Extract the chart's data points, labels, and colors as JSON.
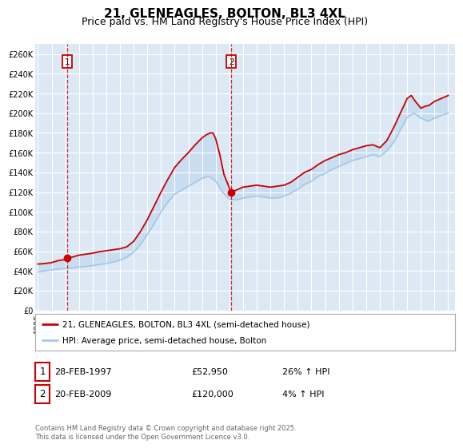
{
  "title": "21, GLENEAGLES, BOLTON, BL3 4XL",
  "subtitle": "Price paid vs. HM Land Registry's House Price Index (HPI)",
  "ylabel_ticks": [
    "£0",
    "£20K",
    "£40K",
    "£60K",
    "£80K",
    "£100K",
    "£120K",
    "£140K",
    "£160K",
    "£180K",
    "£200K",
    "£220K",
    "£240K",
    "£260K"
  ],
  "ytick_values": [
    0,
    20000,
    40000,
    60000,
    80000,
    100000,
    120000,
    140000,
    160000,
    180000,
    200000,
    220000,
    240000,
    260000
  ],
  "ylim": [
    0,
    270000
  ],
  "xlim_start": 1994.8,
  "xlim_end": 2025.5,
  "xticks": [
    1995,
    1996,
    1997,
    1998,
    1999,
    2000,
    2001,
    2002,
    2003,
    2004,
    2005,
    2006,
    2007,
    2008,
    2009,
    2010,
    2011,
    2012,
    2013,
    2014,
    2015,
    2016,
    2017,
    2018,
    2019,
    2020,
    2021,
    2022,
    2023,
    2024,
    2025
  ],
  "plot_bg_color": "#dce9f5",
  "grid_color": "#ffffff",
  "red_line_color": "#cc0000",
  "blue_line_color": "#a8c8e8",
  "marker1_date": 1997.16,
  "marker1_price": 52950,
  "marker2_date": 2009.13,
  "marker2_price": 120000,
  "annotation1_label": "1",
  "annotation2_label": "2",
  "legend_label_red": "21, GLENEAGLES, BOLTON, BL3 4XL (semi-detached house)",
  "legend_label_blue": "HPI: Average price, semi-detached house, Bolton",
  "table_row1": [
    "1",
    "28-FEB-1997",
    "£52,950",
    "26% ↑ HPI"
  ],
  "table_row2": [
    "2",
    "20-FEB-2009",
    "£120,000",
    "4% ↑ HPI"
  ],
  "footer": "Contains HM Land Registry data © Crown copyright and database right 2025.\nThis data is licensed under the Open Government Licence v3.0.",
  "title_fontsize": 11,
  "subtitle_fontsize": 9,
  "tick_fontsize": 7,
  "red_hpi_years": [
    1995.0,
    1995.25,
    1995.5,
    1995.75,
    1996.0,
    1996.25,
    1996.5,
    1996.75,
    1997.0,
    1997.16,
    1997.5,
    1997.75,
    1998.0,
    1998.5,
    1999.0,
    1999.5,
    2000.0,
    2000.5,
    2001.0,
    2001.5,
    2002.0,
    2002.5,
    2003.0,
    2003.5,
    2004.0,
    2004.5,
    2005.0,
    2005.5,
    2006.0,
    2006.5,
    2007.0,
    2007.3,
    2007.6,
    2007.8,
    2008.0,
    2008.3,
    2008.6,
    2009.0,
    2009.13,
    2009.5,
    2010.0,
    2010.5,
    2011.0,
    2011.5,
    2012.0,
    2012.5,
    2013.0,
    2013.5,
    2014.0,
    2014.5,
    2015.0,
    2015.5,
    2016.0,
    2016.5,
    2017.0,
    2017.5,
    2018.0,
    2018.5,
    2019.0,
    2019.5,
    2020.0,
    2020.5,
    2021.0,
    2021.5,
    2022.0,
    2022.3,
    2022.6,
    2022.9,
    2023.0,
    2023.3,
    2023.6,
    2024.0,
    2024.5,
    2025.0
  ],
  "red_hpi_prices": [
    47000,
    47200,
    47500,
    48000,
    48500,
    49500,
    50500,
    51000,
    51500,
    52950,
    54000,
    55000,
    56000,
    57000,
    58000,
    59500,
    60500,
    61500,
    62500,
    64500,
    70000,
    80000,
    92000,
    106000,
    120000,
    133000,
    145000,
    153000,
    160000,
    168000,
    175000,
    178000,
    180000,
    180000,
    174000,
    158000,
    138000,
    124000,
    120000,
    122000,
    125000,
    126000,
    127000,
    126000,
    125000,
    126000,
    127000,
    130000,
    135000,
    140000,
    143000,
    148000,
    152000,
    155000,
    158000,
    160000,
    163000,
    165000,
    167000,
    168000,
    165000,
    172000,
    185000,
    200000,
    215000,
    218000,
    212000,
    207000,
    205000,
    207000,
    208000,
    212000,
    215000,
    218000
  ],
  "blue_hpi_years": [
    1995.0,
    1995.25,
    1995.5,
    1995.75,
    1996.0,
    1996.5,
    1997.0,
    1997.5,
    1998.0,
    1998.5,
    1999.0,
    1999.5,
    2000.0,
    2000.5,
    2001.0,
    2001.5,
    2002.0,
    2002.5,
    2003.0,
    2003.5,
    2004.0,
    2004.5,
    2005.0,
    2005.5,
    2006.0,
    2006.5,
    2007.0,
    2007.5,
    2008.0,
    2008.5,
    2009.0,
    2009.5,
    2010.0,
    2010.5,
    2011.0,
    2011.5,
    2012.0,
    2012.5,
    2013.0,
    2013.5,
    2014.0,
    2014.5,
    2015.0,
    2015.5,
    2016.0,
    2016.5,
    2017.0,
    2017.5,
    2018.0,
    2018.5,
    2019.0,
    2019.5,
    2020.0,
    2020.5,
    2021.0,
    2021.5,
    2022.0,
    2022.5,
    2023.0,
    2023.5,
    2024.0,
    2024.5,
    2025.0
  ],
  "blue_hpi_prices": [
    39000,
    39500,
    40000,
    40500,
    41000,
    42000,
    42500,
    43000,
    44000,
    44500,
    45500,
    46500,
    47500,
    49000,
    51000,
    54000,
    59000,
    67000,
    77000,
    88000,
    100000,
    110000,
    118000,
    122000,
    126000,
    130000,
    134000,
    136000,
    131000,
    120000,
    113000,
    112000,
    114000,
    115000,
    116000,
    115000,
    114000,
    114000,
    116000,
    119000,
    123000,
    128000,
    131000,
    136000,
    139000,
    143000,
    146000,
    149000,
    152000,
    154000,
    156000,
    158000,
    156000,
    162000,
    170000,
    183000,
    196000,
    200000,
    195000,
    192000,
    195000,
    198000,
    200000
  ]
}
